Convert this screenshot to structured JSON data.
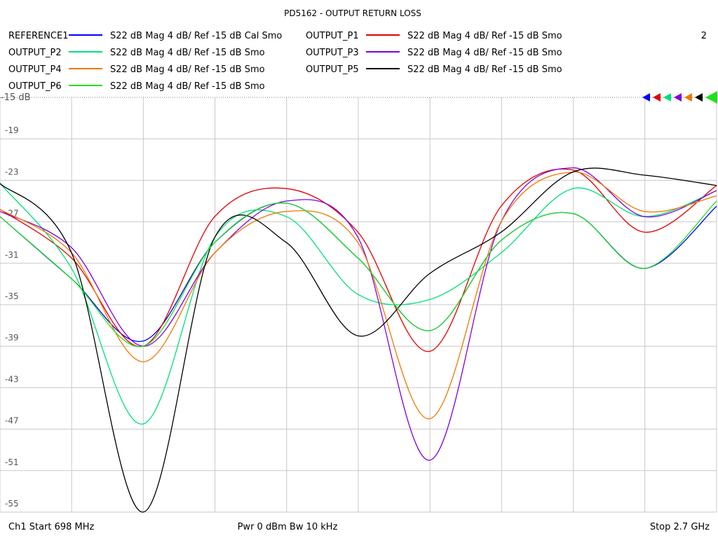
{
  "chart_data": {
    "type": "line",
    "title": "PD5162 - OUTPUT RETURN LOSS",
    "channel_number": "2",
    "x": [
      698,
      898,
      1098,
      1298,
      1498,
      1698,
      1898,
      2098,
      2298,
      2498,
      2700
    ],
    "xlim": [
      698,
      2700
    ],
    "ylim": [
      -55,
      -15
    ],
    "y_ticks": [
      "-15 dB",
      "-19",
      "-23",
      "-27",
      "-31",
      "-35",
      "-39",
      "-43",
      "-47",
      "-51",
      "-55"
    ],
    "grid": true,
    "legend_placement": "top",
    "series": [
      {
        "name": "REFERENCE1",
        "format": "S22  dB Mag  4 dB/ Ref -15 dB  Cal Smo",
        "color": "#0000ff",
        "values": [
          -26.5,
          -32.5,
          -38.5,
          -29.0,
          -25.2,
          -30.5,
          -37.5,
          -28.8,
          -26.2,
          -31.5,
          -25.5
        ]
      },
      {
        "name": "OUTPUT_P1",
        "format": "S22  dB Mag  4 dB/ Ref -15 dB  Smo",
        "color": "#e00000",
        "values": [
          -25.8,
          -30.5,
          -39.0,
          -26.5,
          -23.8,
          -28.0,
          -39.5,
          -25.5,
          -22.0,
          -28.0,
          -23.5
        ]
      },
      {
        "name": "OUTPUT_P2",
        "format": "S22  dB Mag  4 dB/ Ref -15 dB  Smo",
        "color": "#00e078",
        "values": [
          -23.3,
          -31.5,
          -46.5,
          -28.5,
          -26.5,
          -34.0,
          -34.5,
          -30.0,
          -23.8,
          -26.5,
          -24.0
        ]
      },
      {
        "name": "OUTPUT_P3",
        "format": "S22  dB Mag  4 dB/ Ref -15 dB  Smo",
        "color": "#8000e0",
        "values": [
          -26.0,
          -29.5,
          -39.0,
          -30.0,
          -25.0,
          -28.5,
          -50.0,
          -27.0,
          -21.8,
          -26.5,
          -24.0
        ]
      },
      {
        "name": "OUTPUT_P4",
        "format": "S22  dB Mag  4 dB/ Ref -15 dB  Smo",
        "color": "#f07800",
        "values": [
          -25.8,
          -30.0,
          -40.5,
          -30.0,
          -26.0,
          -29.0,
          -46.0,
          -27.0,
          -22.2,
          -26.0,
          -24.5
        ]
      },
      {
        "name": "OUTPUT_P5",
        "format": "S22  dB Mag  4 dB/ Ref -15 dB  Smo",
        "color": "#000000",
        "values": [
          -23.3,
          -30.0,
          -55.0,
          -28.5,
          -29.0,
          -38.0,
          -32.0,
          -28.0,
          -22.2,
          -22.5,
          -23.5
        ]
      },
      {
        "name": "OUTPUT_P6",
        "format": "S22  dB Mag  4 dB/ Ref -15 dB  Smo",
        "color": "#20e020",
        "values": [
          -26.5,
          -32.5,
          -39.0,
          -29.0,
          -25.2,
          -30.5,
          -37.5,
          -28.8,
          -26.2,
          -31.5,
          -25.0
        ]
      }
    ]
  },
  "footer": {
    "start": "Ch1  Start  698 MHz",
    "mid": "Pwr  0 dBm  Bw  10 kHz",
    "stop": "Stop  2.7 GHz"
  }
}
